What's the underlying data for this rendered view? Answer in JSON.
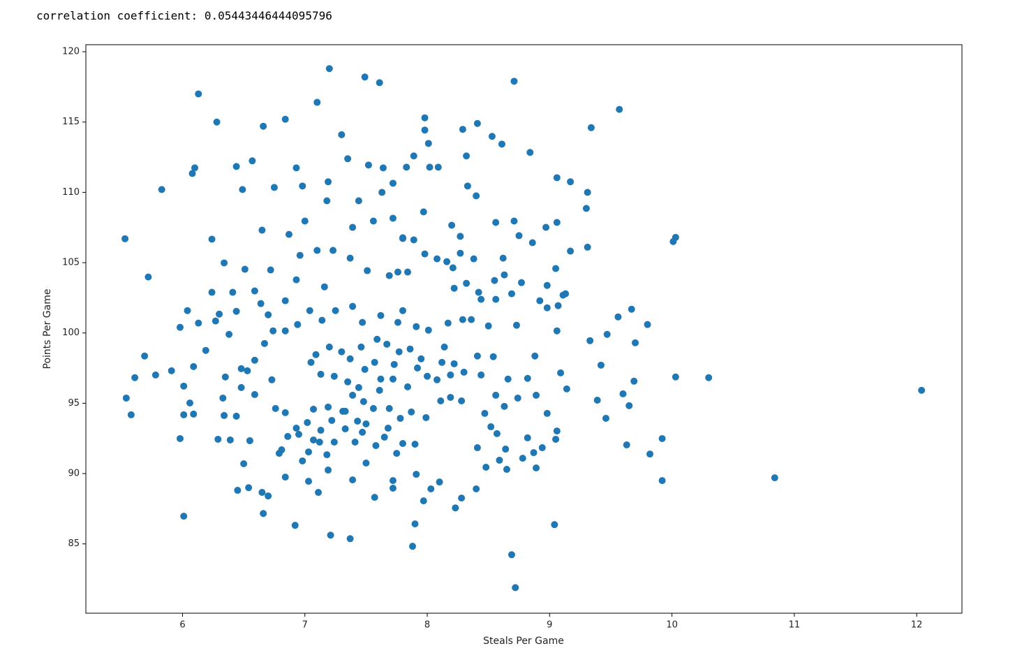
{
  "console_output": "correlation coefficient: 0.05443446444095796",
  "chart_data": {
    "type": "scatter",
    "xlabel": "Steals Per Game",
    "ylabel": "Points Per Game",
    "color": "#1f77b4",
    "xlim": [
      5.21,
      12.37
    ],
    "ylim": [
      80.07,
      120.5
    ],
    "xticks": [
      6,
      7,
      8,
      9,
      10,
      11,
      12
    ],
    "yticks": [
      85,
      90,
      95,
      100,
      105,
      110,
      115,
      120
    ],
    "x": [
      12.04,
      10.84,
      10.3,
      10.03,
      10.03,
      10.01,
      9.92,
      9.92,
      9.82,
      9.8,
      9.57,
      9.34,
      8.72,
      8.69,
      8.71,
      7.2,
      7.49,
      7.61,
      6.13,
      5.53,
      5.54,
      5.58,
      5.61,
      5.72,
      5.83,
      6.01,
      6.92,
      7.21,
      7.37,
      7.88,
      9.04,
      6.28,
      6.66,
      6.84,
      7.1,
      7.3,
      7.98,
      8.41,
      9.6,
      9.63,
      9.65,
      9.67,
      9.69,
      9.7,
      9.56,
      9.47,
      9.46,
      9.42,
      9.39,
      9.33,
      9.31,
      9.3,
      9.31,
      9.17,
      9.06,
      9.17,
      9.13,
      9.14,
      9.05,
      9.06,
      8.98,
      8.97,
      8.92,
      8.88,
      8.84,
      8.75,
      8.71,
      8.73,
      8.61,
      8.53,
      8.4,
      8.33,
      8.27,
      8.22,
      8.14,
      8.08,
      7.98,
      8.01,
      8.02,
      8.09,
      8.29,
      8.32,
      7.83,
      7.89,
      7.64,
      7.52,
      7.19,
      6.98,
      6.93,
      6.75,
      6.57,
      6.44,
      6.1,
      6.08,
      6.49,
      6.65,
      6.24,
      6.34,
      6.51,
      6.72,
      6.87,
      7.0,
      7.18,
      7.35,
      7.44,
      7.39,
      7.56,
      7.63,
      7.72,
      7.72,
      7.8,
      7.97,
      8.2,
      8.27,
      8.56,
      8.62,
      8.86,
      9.05,
      9.06,
      8.56,
      8.69,
      8.42,
      8.5,
      8.54,
      8.66,
      8.82,
      8.89,
      9.09,
      9.06,
      8.94,
      8.82,
      8.64,
      8.59,
      8.65,
      8.87,
      8.89,
      8.78,
      8.41,
      8.48,
      8.4,
      8.28,
      8.23,
      8.03,
      7.97,
      8.1,
      7.91,
      7.8,
      7.9,
      7.72,
      7.72,
      7.57,
      7.39,
      7.9,
      7.11,
      7.03,
      6.84,
      6.7,
      6.65,
      6.54,
      6.45,
      6.66,
      6.5,
      6.98,
      7.19,
      5.98,
      6.29,
      6.39,
      6.55,
      6.01,
      6.09,
      6.34,
      6.44,
      6.06,
      5.98,
      5.91,
      5.69,
      5.78,
      6.01,
      6.04,
      6.09,
      6.13,
      6.19,
      6.24,
      6.27,
      6.3,
      6.38,
      6.41,
      6.44,
      6.59,
      6.64,
      6.7,
      6.84,
      6.93,
      6.96,
      7.1,
      7.16,
      7.23,
      7.37,
      7.51,
      7.69,
      7.76,
      7.84,
      7.8,
      7.89,
      7.98,
      8.08,
      8.16,
      8.21,
      8.38,
      8.32,
      8.44,
      8.55,
      8.63,
      8.77,
      8.98,
      9.07,
      9.11,
      8.98,
      8.36,
      8.29,
      8.17,
      8.01,
      7.91,
      7.8,
      7.76,
      7.62,
      7.47,
      7.39,
      7.25,
      7.14,
      7.04,
      6.94,
      6.84,
      6.74,
      6.67,
      6.59,
      6.53,
      6.48,
      6.35,
      6.33,
      6.48,
      6.59,
      6.73,
      6.76,
      6.84,
      6.93,
      7.02,
      7.07,
      7.19,
      7.22,
      7.31,
      7.39,
      7.48,
      7.56,
      7.43,
      7.5,
      7.47,
      7.41,
      7.5,
      7.58,
      7.65,
      7.68,
      7.75,
      7.24,
      7.12,
      7.03,
      7.13,
      6.79,
      6.81,
      6.86,
      6.95,
      7.07,
      7.18,
      7.33,
      7.33,
      7.44,
      7.35,
      7.24,
      7.13,
      7.05,
      7.09,
      7.2,
      7.3,
      7.37,
      7.46,
      7.59,
      7.67,
      7.77,
      7.86,
      7.95,
      7.92,
      8.0,
      8.12,
      8.19,
      8.22,
      8.3,
      8.41,
      8.44,
      8.56,
      8.47,
      8.52,
      8.63,
      8.74,
      8.57,
      8.28,
      8.19,
      8.11,
      7.99,
      7.87,
      7.78,
      7.69,
      7.61,
      7.84,
      7.72,
      7.62,
      7.73,
      7.49,
      7.57
    ],
    "values": [
      95.92,
      89.7,
      96.82,
      96.87,
      106.8,
      106.5,
      92.49,
      89.5,
      91.39,
      100.6,
      115.9,
      114.6,
      81.89,
      84.23,
      117.9,
      118.8,
      118.2,
      117.8,
      117.0,
      106.7,
      95.37,
      94.18,
      96.82,
      103.98,
      110.2,
      86.97,
      86.32,
      85.62,
      85.37,
      84.83,
      86.37,
      115.0,
      114.7,
      115.2,
      116.4,
      114.1,
      115.3,
      114.9,
      95.67,
      92.04,
      94.83,
      101.69,
      96.57,
      99.3,
      101.14,
      99.9,
      93.93,
      97.71,
      95.22,
      99.45,
      106.1,
      108.86,
      110.0,
      110.75,
      111.04,
      105.82,
      102.79,
      96.02,
      92.44,
      100.15,
      94.28,
      107.51,
      102.29,
      98.36,
      112.84,
      106.92,
      107.96,
      100.55,
      113.43,
      113.98,
      109.75,
      110.45,
      105.67,
      103.18,
      99.0,
      96.67,
      114.43,
      113.48,
      111.79,
      111.79,
      114.48,
      112.59,
      111.79,
      112.59,
      111.74,
      111.94,
      110.75,
      110.45,
      111.74,
      110.35,
      112.24,
      111.84,
      111.74,
      111.34,
      110.2,
      107.31,
      106.67,
      104.98,
      104.53,
      104.48,
      107.01,
      107.96,
      109.4,
      112.39,
      109.4,
      107.51,
      107.96,
      110.0,
      110.65,
      108.16,
      106.77,
      108.61,
      107.66,
      106.87,
      107.86,
      105.32,
      106.42,
      104.58,
      107.86,
      102.39,
      102.79,
      102.89,
      100.5,
      98.31,
      96.72,
      96.77,
      95.57,
      97.16,
      93.03,
      91.84,
      92.54,
      91.74,
      90.95,
      90.3,
      91.49,
      90.4,
      91.09,
      91.84,
      90.45,
      88.91,
      88.26,
      87.56,
      88.91,
      88.06,
      89.4,
      89.95,
      92.14,
      92.09,
      89.5,
      88.96,
      88.31,
      89.55,
      86.42,
      88.66,
      89.45,
      89.75,
      88.41,
      88.66,
      89.0,
      88.81,
      87.16,
      90.7,
      90.9,
      90.25,
      92.49,
      92.44,
      92.39,
      92.34,
      94.18,
      94.23,
      94.13,
      94.08,
      95.02,
      100.4,
      97.31,
      98.36,
      97.01,
      96.22,
      101.59,
      97.61,
      100.7,
      98.76,
      102.89,
      100.85,
      101.34,
      99.9,
      102.89,
      101.54,
      102.99,
      102.09,
      101.29,
      102.29,
      103.78,
      105.52,
      105.87,
      103.28,
      105.87,
      105.32,
      104.43,
      104.08,
      104.33,
      104.33,
      106.72,
      106.62,
      105.62,
      105.27,
      105.07,
      104.63,
      105.27,
      103.53,
      102.39,
      103.73,
      104.13,
      103.58,
      103.38,
      101.94,
      102.69,
      101.79,
      100.95,
      100.95,
      100.7,
      100.2,
      100.45,
      101.59,
      100.75,
      101.24,
      100.75,
      101.89,
      101.59,
      100.9,
      101.59,
      100.6,
      100.15,
      100.15,
      99.25,
      98.06,
      97.31,
      97.46,
      96.87,
      95.37,
      96.12,
      95.62,
      96.67,
      94.63,
      94.33,
      93.23,
      93.63,
      94.58,
      94.73,
      93.78,
      94.43,
      95.57,
      95.12,
      94.63,
      93.73,
      93.53,
      92.94,
      92.24,
      90.75,
      91.99,
      92.59,
      93.23,
      91.44,
      92.24,
      92.24,
      91.54,
      93.08,
      91.44,
      91.69,
      92.64,
      92.79,
      92.39,
      91.34,
      93.18,
      94.43,
      96.12,
      96.52,
      96.92,
      97.06,
      97.91,
      98.46,
      99.0,
      98.66,
      98.16,
      99.0,
      99.55,
      99.2,
      98.66,
      98.86,
      98.16,
      97.51,
      96.92,
      97.91,
      97.01,
      97.81,
      97.21,
      98.36,
      97.01,
      95.57,
      94.28,
      93.33,
      94.78,
      95.37,
      92.84,
      95.17,
      95.42,
      95.17,
      93.98,
      94.38,
      93.93,
      94.63,
      95.92,
      96.17,
      96.72,
      96.72,
      97.76,
      97.41,
      97.91
    ]
  }
}
